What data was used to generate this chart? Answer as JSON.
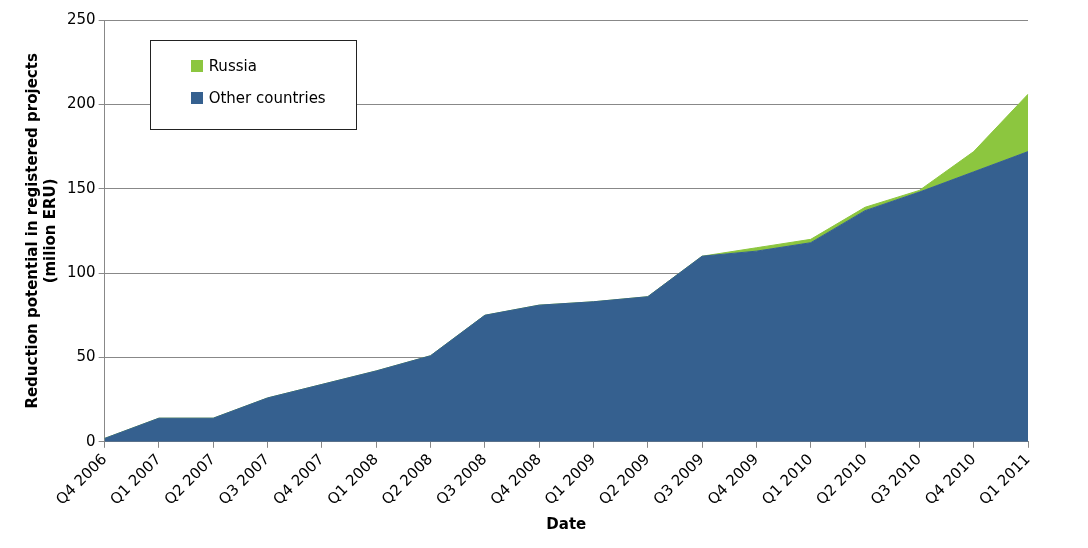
{
  "chart_data": {
    "type": "area",
    "stacked": true,
    "xlabel": "Date",
    "ylabel": "Reduction potential in registered projects\n(milion ERU)",
    "categories": [
      "Q4 2006",
      "Q1 2007",
      "Q2 2007",
      "Q3 2007",
      "Q4 2007",
      "Q1 2008",
      "Q2 2008",
      "Q3 2008",
      "Q4 2008",
      "Q1 2009",
      "Q2 2009",
      "Q3 2009",
      "Q4 2009",
      "Q1 2010",
      "Q2 2010",
      "Q3 2010",
      "Q4 2010",
      "Q1 2011"
    ],
    "series": [
      {
        "name": "Other countries",
        "color": "#35608f",
        "values": [
          2,
          14,
          14,
          26,
          34,
          42,
          51,
          75,
          81,
          83,
          86,
          110,
          113,
          118,
          137,
          148,
          160,
          172
        ]
      },
      {
        "name": "Russia",
        "color": "#8cc63f",
        "values": [
          0,
          0,
          0,
          0,
          0,
          0,
          0,
          0,
          0,
          0,
          0,
          0,
          2,
          2,
          2,
          1,
          12,
          34
        ]
      }
    ],
    "ylim": [
      0,
      250
    ],
    "yticks": [
      0,
      50,
      100,
      150,
      200,
      250
    ],
    "grid": "y",
    "legend": "top left"
  }
}
